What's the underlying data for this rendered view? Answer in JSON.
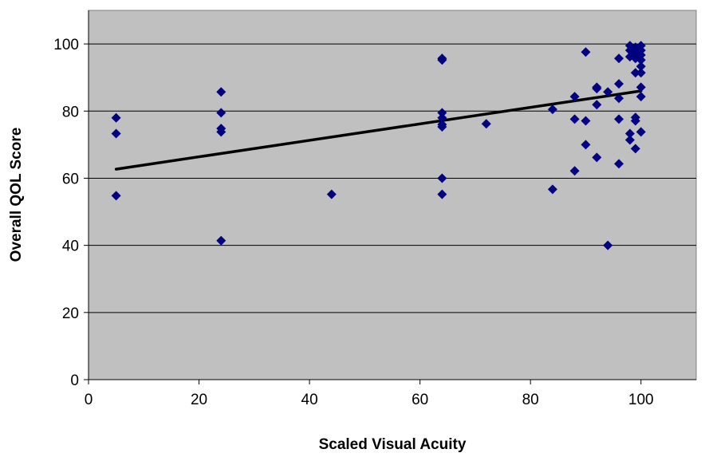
{
  "chart_data": {
    "type": "scatter",
    "xlabel": "Scaled Visual Acuity",
    "ylabel": "Overall QOL Score",
    "xlim": [
      0,
      110
    ],
    "ylim": [
      0,
      110
    ],
    "x_ticks": [
      0,
      20,
      40,
      60,
      80,
      100
    ],
    "y_ticks": [
      0,
      20,
      40,
      60,
      80,
      100
    ],
    "grid": "horizontal",
    "legend": "none",
    "colors": {
      "plot_background": "#c0c0c0",
      "marker": "#000080",
      "trendline": "#000000",
      "gridline": "#000000"
    },
    "trendline": {
      "type": "linear",
      "points": [
        [
          5,
          62.7
        ],
        [
          100,
          86.0
        ]
      ]
    },
    "series": [
      {
        "marker": "diamond",
        "points": [
          [
            5,
            78.0
          ],
          [
            5,
            73.3
          ],
          [
            5,
            54.8
          ],
          [
            24,
            85.7
          ],
          [
            24,
            79.5
          ],
          [
            24,
            74.8
          ],
          [
            24,
            73.8
          ],
          [
            24,
            41.4
          ],
          [
            44,
            55.2
          ],
          [
            64,
            95.7
          ],
          [
            64,
            95.2
          ],
          [
            64,
            79.5
          ],
          [
            64,
            78.0
          ],
          [
            64,
            76.0
          ],
          [
            64,
            75.3
          ],
          [
            64,
            60.0
          ],
          [
            64,
            55.2
          ],
          [
            72,
            76.2
          ],
          [
            84,
            80.5
          ],
          [
            84,
            56.7
          ],
          [
            88,
            84.3
          ],
          [
            88,
            77.6
          ],
          [
            88,
            62.2
          ],
          [
            90,
            97.6
          ],
          [
            90,
            77.1
          ],
          [
            90,
            70.0
          ],
          [
            92,
            87.1
          ],
          [
            92,
            86.7
          ],
          [
            92,
            81.9
          ],
          [
            92,
            66.2
          ],
          [
            94,
            85.7
          ],
          [
            94,
            40.0
          ],
          [
            96,
            95.7
          ],
          [
            96,
            88.1
          ],
          [
            96,
            83.8
          ],
          [
            96,
            77.6
          ],
          [
            96,
            64.3
          ],
          [
            98,
            99.5
          ],
          [
            98,
            98.1
          ],
          [
            98,
            96.2
          ],
          [
            98,
            73.3
          ],
          [
            98,
            71.4
          ],
          [
            99,
            99.0
          ],
          [
            99,
            97.1
          ],
          [
            99,
            95.7
          ],
          [
            99,
            91.4
          ],
          [
            99,
            78.1
          ],
          [
            99,
            77.1
          ],
          [
            99,
            68.8
          ],
          [
            100,
            99.5
          ],
          [
            100,
            98.1
          ],
          [
            100,
            96.7
          ],
          [
            100,
            95.2
          ],
          [
            100,
            93.3
          ],
          [
            100,
            91.4
          ],
          [
            100,
            87.1
          ],
          [
            100,
            84.3
          ],
          [
            100,
            73.8
          ]
        ]
      }
    ]
  }
}
